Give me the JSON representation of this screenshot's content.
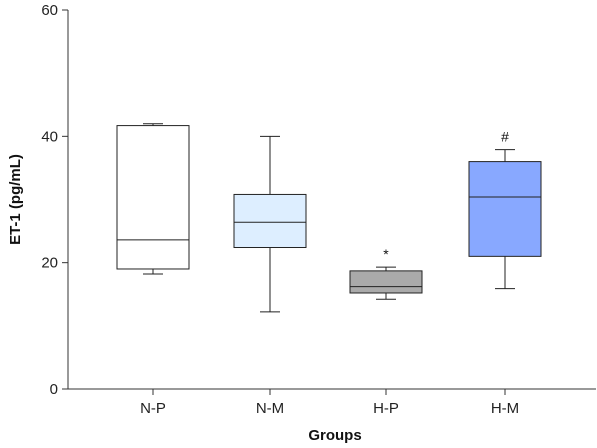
{
  "chart_data": {
    "type": "box",
    "title": "",
    "xlabel": "Groups",
    "ylabel": "ET-1 (pg/mL)",
    "ylim": [
      0,
      60
    ],
    "yticks": [
      0,
      20,
      40,
      60
    ],
    "grid": false,
    "categories": [
      "N-P",
      "N-M",
      "H-P",
      "H-M"
    ],
    "boxes": [
      {
        "category": "N-P",
        "whisker_low": 18.2,
        "q1": 19.0,
        "median": 23.6,
        "q3": 41.7,
        "whisker_high": 42.0,
        "fill": "#ffffff",
        "annotation": ""
      },
      {
        "category": "N-M",
        "whisker_low": 12.2,
        "q1": 22.4,
        "median": 26.4,
        "q3": 30.8,
        "whisker_high": 40.0,
        "fill": "#ddeeff",
        "annotation": ""
      },
      {
        "category": "H-P",
        "whisker_low": 14.2,
        "q1": 15.2,
        "median": 16.2,
        "q3": 18.7,
        "whisker_high": 19.3,
        "fill": "#aaaaaa",
        "annotation": "*"
      },
      {
        "category": "H-M",
        "whisker_low": 15.9,
        "q1": 21.0,
        "median": 30.4,
        "q3": 36.0,
        "whisker_high": 37.9,
        "fill": "#88a8ff",
        "annotation": "#"
      }
    ]
  }
}
